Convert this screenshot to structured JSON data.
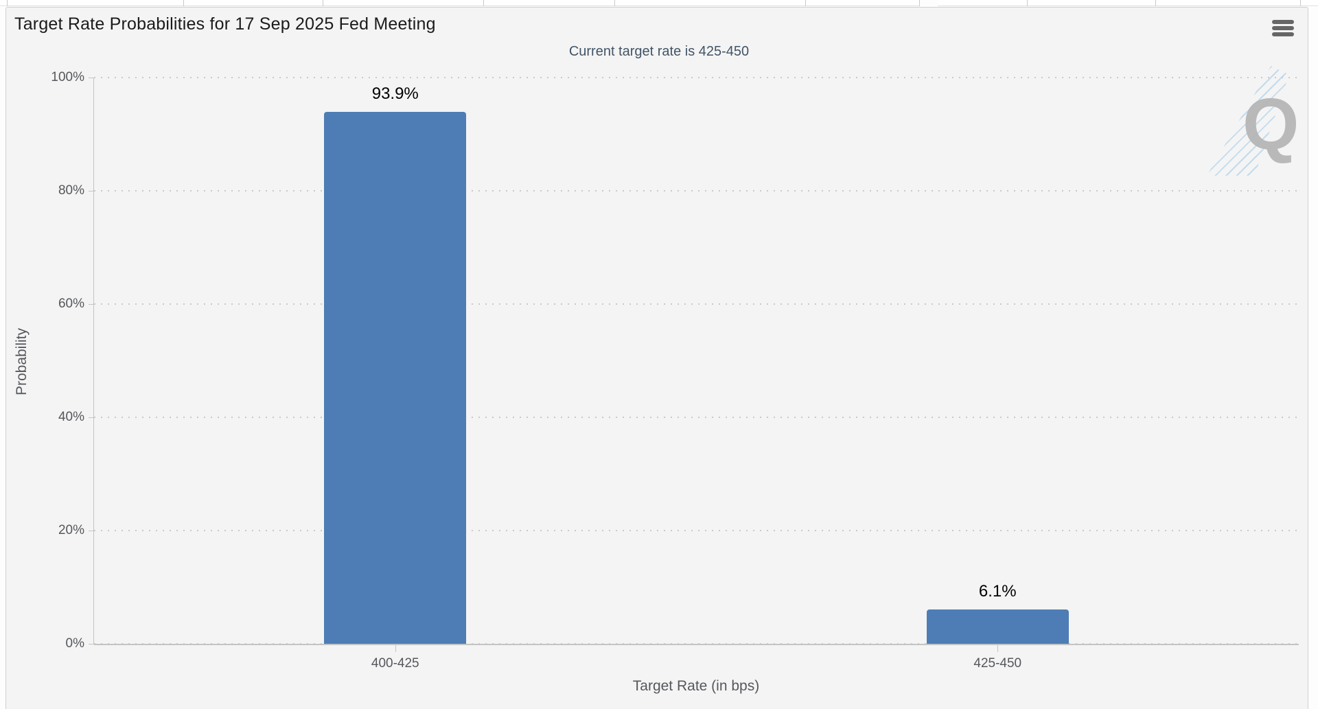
{
  "chart": {
    "title": "Target Rate Probabilities for 17 Sep 2025 Fed Meeting",
    "subtitle": "Current target rate is 425-450",
    "xlabel": "Target Rate (in bps)",
    "ylabel": "Probability",
    "watermark_letter": "Q"
  },
  "chart_data": {
    "type": "bar",
    "title": "Target Rate Probabilities for 17 Sep 2025 Fed Meeting",
    "subtitle": "Current target rate is 425-450",
    "categories": [
      "400-425",
      "425-450"
    ],
    "values": [
      93.9,
      6.1
    ],
    "data_labels": [
      "93.9%",
      "6.1%"
    ],
    "xlabel": "Target Rate (in bps)",
    "ylabel": "Probability",
    "ylim": [
      0,
      100
    ],
    "ytick_values": [
      0,
      20,
      40,
      60,
      80,
      100
    ],
    "ytick_labels": [
      "0%",
      "20%",
      "40%",
      "60%",
      "80%",
      "100%"
    ],
    "grid": "dotted-horizontal",
    "legend_position": "none",
    "bar_color": "#4d7db4",
    "colors": {
      "plot_background": "#f4f4f4",
      "bar": "#4d7db4",
      "title_text": "#1b1b1b",
      "subtitle_text": "#415467",
      "axis_text": "#55575c",
      "gridline": "#c9c9c9",
      "watermark_gray": "#b6b6b6",
      "watermark_blue": "#b9d7ec"
    }
  }
}
